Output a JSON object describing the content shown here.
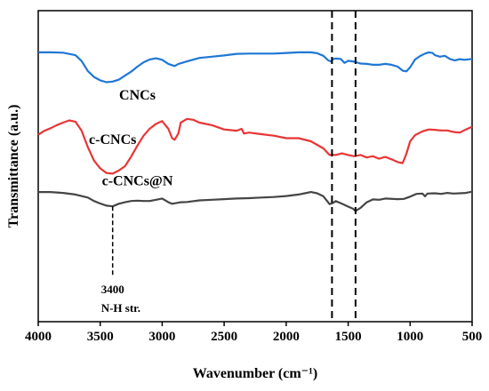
{
  "chart_data": {
    "type": "line",
    "title": "",
    "xlabel": "Wavenumber (cm⁻¹)",
    "ylabel": "Transmittance (a.u.)",
    "xlim": [
      4000,
      500
    ],
    "x_reversed": true,
    "ylim": [
      0,
      1
    ],
    "x_ticks": [
      "4000",
      "3500",
      "3000",
      "2500",
      "2000",
      "1500",
      "1000",
      "500"
    ],
    "y_ticks_shown": false,
    "grid": false,
    "legend": "none (series labelled inline)",
    "series": [
      {
        "name": "CNCs",
        "color": "#1f77d4",
        "points": [
          [
            4000,
            0.866
          ],
          [
            3900,
            0.866
          ],
          [
            3800,
            0.865
          ],
          [
            3700,
            0.857
          ],
          [
            3650,
            0.838
          ],
          [
            3600,
            0.806
          ],
          [
            3550,
            0.787
          ],
          [
            3500,
            0.776
          ],
          [
            3450,
            0.77
          ],
          [
            3400,
            0.772
          ],
          [
            3350,
            0.778
          ],
          [
            3300,
            0.791
          ],
          [
            3250,
            0.804
          ],
          [
            3200,
            0.82
          ],
          [
            3150,
            0.834
          ],
          [
            3100,
            0.843
          ],
          [
            3050,
            0.847
          ],
          [
            3000,
            0.842
          ],
          [
            2950,
            0.829
          ],
          [
            2900,
            0.822
          ],
          [
            2870,
            0.829
          ],
          [
            2850,
            0.831
          ],
          [
            2800,
            0.837
          ],
          [
            2700,
            0.848
          ],
          [
            2600,
            0.852
          ],
          [
            2500,
            0.856
          ],
          [
            2400,
            0.861
          ],
          [
            2300,
            0.862
          ],
          [
            2200,
            0.862
          ],
          [
            2100,
            0.862
          ],
          [
            2000,
            0.864
          ],
          [
            1900,
            0.866
          ],
          [
            1800,
            0.866
          ],
          [
            1750,
            0.863
          ],
          [
            1700,
            0.855
          ],
          [
            1660,
            0.84
          ],
          [
            1640,
            0.837
          ],
          [
            1620,
            0.845
          ],
          [
            1600,
            0.846
          ],
          [
            1560,
            0.845
          ],
          [
            1530,
            0.832
          ],
          [
            1500,
            0.839
          ],
          [
            1450,
            0.836
          ],
          [
            1400,
            0.83
          ],
          [
            1350,
            0.829
          ],
          [
            1300,
            0.826
          ],
          [
            1250,
            0.826
          ],
          [
            1200,
            0.829
          ],
          [
            1150,
            0.826
          ],
          [
            1100,
            0.82
          ],
          [
            1060,
            0.807
          ],
          [
            1030,
            0.805
          ],
          [
            1000,
            0.818
          ],
          [
            960,
            0.843
          ],
          [
            920,
            0.854
          ],
          [
            880,
            0.862
          ],
          [
            850,
            0.866
          ],
          [
            820,
            0.864
          ],
          [
            800,
            0.857
          ],
          [
            760,
            0.852
          ],
          [
            720,
            0.855
          ],
          [
            680,
            0.845
          ],
          [
            640,
            0.84
          ],
          [
            600,
            0.844
          ],
          [
            560,
            0.842
          ],
          [
            500,
            0.845
          ]
        ]
      },
      {
        "name": "c-CNCs",
        "color": "#e83535",
        "points": [
          [
            4000,
            0.601
          ],
          [
            3950,
            0.614
          ],
          [
            3900,
            0.622
          ],
          [
            3850,
            0.632
          ],
          [
            3800,
            0.64
          ],
          [
            3750,
            0.647
          ],
          [
            3700,
            0.643
          ],
          [
            3650,
            0.614
          ],
          [
            3600,
            0.561
          ],
          [
            3550,
            0.518
          ],
          [
            3500,
            0.493
          ],
          [
            3450,
            0.478
          ],
          [
            3400,
            0.476
          ],
          [
            3350,
            0.486
          ],
          [
            3300,
            0.5
          ],
          [
            3250,
            0.531
          ],
          [
            3200,
            0.566
          ],
          [
            3150,
            0.598
          ],
          [
            3100,
            0.621
          ],
          [
            3050,
            0.636
          ],
          [
            3000,
            0.645
          ],
          [
            2950,
            0.62
          ],
          [
            2920,
            0.59
          ],
          [
            2900,
            0.585
          ],
          [
            2870,
            0.605
          ],
          [
            2850,
            0.64
          ],
          [
            2800,
            0.652
          ],
          [
            2750,
            0.649
          ],
          [
            2700,
            0.64
          ],
          [
            2600,
            0.632
          ],
          [
            2500,
            0.618
          ],
          [
            2400,
            0.614
          ],
          [
            2360,
            0.62
          ],
          [
            2340,
            0.605
          ],
          [
            2300,
            0.608
          ],
          [
            2200,
            0.603
          ],
          [
            2100,
            0.598
          ],
          [
            2000,
            0.59
          ],
          [
            1900,
            0.59
          ],
          [
            1800,
            0.58
          ],
          [
            1700,
            0.557
          ],
          [
            1650,
            0.536
          ],
          [
            1600,
            0.536
          ],
          [
            1550,
            0.541
          ],
          [
            1500,
            0.536
          ],
          [
            1450,
            0.532
          ],
          [
            1400,
            0.536
          ],
          [
            1350,
            0.528
          ],
          [
            1300,
            0.532
          ],
          [
            1250,
            0.524
          ],
          [
            1200,
            0.53
          ],
          [
            1150,
            0.522
          ],
          [
            1100,
            0.513
          ],
          [
            1060,
            0.51
          ],
          [
            1030,
            0.54
          ],
          [
            1000,
            0.58
          ],
          [
            960,
            0.6
          ],
          [
            900,
            0.612
          ],
          [
            850,
            0.618
          ],
          [
            800,
            0.617
          ],
          [
            750,
            0.615
          ],
          [
            700,
            0.615
          ],
          [
            650,
            0.61
          ],
          [
            600,
            0.608
          ],
          [
            550,
            0.618
          ],
          [
            500,
            0.627
          ]
        ]
      },
      {
        "name": "c-CNCs@N",
        "color": "#454545",
        "points": [
          [
            4000,
            0.417
          ],
          [
            3900,
            0.417
          ],
          [
            3800,
            0.414
          ],
          [
            3700,
            0.409
          ],
          [
            3600,
            0.399
          ],
          [
            3550,
            0.388
          ],
          [
            3500,
            0.38
          ],
          [
            3450,
            0.373
          ],
          [
            3400,
            0.371
          ],
          [
            3350,
            0.379
          ],
          [
            3300,
            0.384
          ],
          [
            3250,
            0.388
          ],
          [
            3200,
            0.389
          ],
          [
            3150,
            0.388
          ],
          [
            3100,
            0.388
          ],
          [
            3050,
            0.392
          ],
          [
            3000,
            0.396
          ],
          [
            2950,
            0.384
          ],
          [
            2920,
            0.379
          ],
          [
            2880,
            0.382
          ],
          [
            2850,
            0.384
          ],
          [
            2800,
            0.385
          ],
          [
            2700,
            0.39
          ],
          [
            2600,
            0.392
          ],
          [
            2500,
            0.394
          ],
          [
            2400,
            0.396
          ],
          [
            2300,
            0.397
          ],
          [
            2200,
            0.399
          ],
          [
            2100,
            0.401
          ],
          [
            2000,
            0.404
          ],
          [
            1900,
            0.409
          ],
          [
            1850,
            0.413
          ],
          [
            1800,
            0.417
          ],
          [
            1750,
            0.413
          ],
          [
            1700,
            0.403
          ],
          [
            1650,
            0.378
          ],
          [
            1620,
            0.382
          ],
          [
            1600,
            0.388
          ],
          [
            1550,
            0.379
          ],
          [
            1500,
            0.37
          ],
          [
            1460,
            0.363
          ],
          [
            1440,
            0.356
          ],
          [
            1400,
            0.366
          ],
          [
            1350,
            0.384
          ],
          [
            1300,
            0.393
          ],
          [
            1250,
            0.392
          ],
          [
            1200,
            0.396
          ],
          [
            1100,
            0.394
          ],
          [
            1050,
            0.395
          ],
          [
            1000,
            0.402
          ],
          [
            950,
            0.411
          ],
          [
            900,
            0.412
          ],
          [
            880,
            0.403
          ],
          [
            860,
            0.412
          ],
          [
            800,
            0.413
          ],
          [
            750,
            0.411
          ],
          [
            700,
            0.414
          ],
          [
            650,
            0.412
          ],
          [
            600,
            0.413
          ],
          [
            550,
            0.414
          ],
          [
            500,
            0.418
          ]
        ]
      }
    ],
    "reference_lines": [
      1630,
      1440
    ],
    "annotations": [
      {
        "x": 3400,
        "lines": [
          "3400",
          "N-H str."
        ]
      }
    ]
  }
}
